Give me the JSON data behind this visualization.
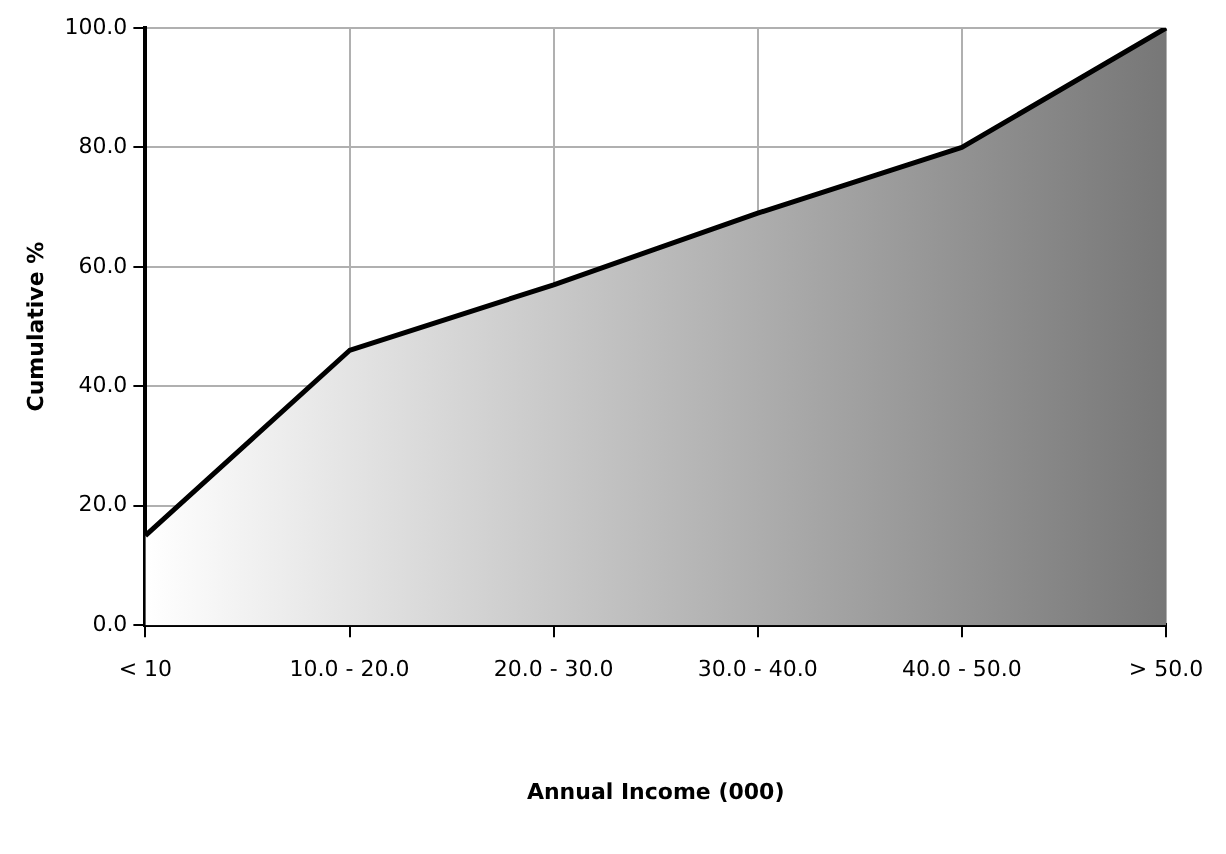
{
  "chart_data": {
    "type": "area",
    "xlabel": "Annual Income (000)",
    "ylabel": "Cumulative %",
    "categories": [
      "< 10",
      "10.0 - 20.0",
      "20.0 - 30.0",
      "30.0 - 40.0",
      "40.0 - 50.0",
      "> 50.0"
    ],
    "series": [
      {
        "color": "#000000",
        "values": [
          15,
          46,
          57,
          69,
          80,
          100
        ]
      }
    ],
    "ylim": [
      0,
      100
    ],
    "yticks": [
      {
        "value": 0,
        "label": "0.0"
      },
      {
        "value": 20,
        "label": "20.0"
      },
      {
        "value": 40,
        "label": "40.0"
      },
      {
        "value": 60,
        "label": "60.0"
      },
      {
        "value": 80,
        "label": "80.0"
      },
      {
        "value": 100,
        "label": "100.0"
      }
    ],
    "grid": true,
    "legend": false,
    "marker": "none",
    "line_style": "solid"
  }
}
